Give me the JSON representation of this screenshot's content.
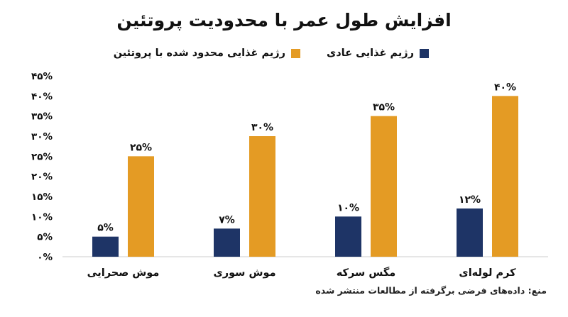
{
  "chart_data": {
    "type": "bar",
    "title": "افزایش طول عمر با محدودیت پروتئین",
    "categories": [
      "موش صحرایی",
      "موش سوری",
      "مگس سرکه",
      "کرم لوله‌ای"
    ],
    "series": [
      {
        "name": "رژیم غذایی عادی",
        "values": [
          5,
          7,
          10,
          12
        ],
        "labels": [
          "۵%",
          "۷%",
          "۱۰%",
          "۱۲%"
        ],
        "color": "#1e3466"
      },
      {
        "name": "رژیم غذایی محدود شده با پروتئین",
        "values": [
          25,
          30,
          35,
          40
        ],
        "labels": [
          "۲۵%",
          "۳۰%",
          "۳۵%",
          "۴۰%"
        ],
        "color": "#e49b24"
      }
    ],
    "ylim": [
      0,
      45
    ],
    "yticks": [
      0,
      5,
      10,
      15,
      20,
      25,
      30,
      35,
      40,
      45
    ],
    "ytick_labels": [
      "۰%",
      "۵%",
      "۱۰%",
      "۱۵%",
      "۲۰%",
      "۲۵%",
      "۳۰%",
      "۳۵%",
      "۴۰%",
      "۴۵%"
    ],
    "grid": false,
    "legend": "top-right",
    "source": "منع: داده‌های فرضی برگرفته از مطالعات منتشر شده"
  }
}
